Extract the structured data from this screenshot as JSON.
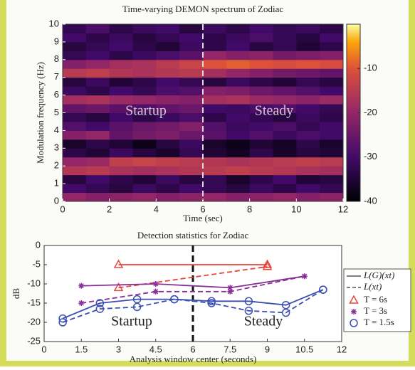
{
  "chart_data": [
    {
      "type": "heatmap",
      "title": "Time-varying DEMON spectrum of Zodiac",
      "x_label": "Time (sec)",
      "y_label": "Modulation frequency (Hz)",
      "x": [
        0.5,
        1.5,
        2.5,
        3.5,
        4.5,
        5.5,
        6.5,
        7.5,
        8.5,
        9.5,
        10.5,
        11.5
      ],
      "y": [
        0.25,
        0.75,
        1.25,
        1.75,
        2.25,
        2.75,
        3.25,
        3.75,
        4.25,
        4.75,
        5.25,
        5.75,
        6.25,
        6.75,
        7.25,
        7.75,
        8.25,
        8.75,
        9.25,
        9.75
      ],
      "values": [
        [
          -20,
          -22,
          -21,
          -20,
          -22,
          -21,
          -20,
          -22,
          -21,
          -20,
          -22,
          -21
        ],
        [
          -30,
          -32,
          -34,
          -31,
          -33,
          -30,
          -32,
          -34,
          -31,
          -33,
          -30,
          -32
        ],
        [
          -34,
          -30,
          -33,
          -35,
          -31,
          -34,
          -32,
          -36,
          -33,
          -30,
          -35,
          -34
        ],
        [
          -16,
          -15,
          -17,
          -18,
          -17,
          -16,
          -15,
          -14,
          -15,
          -16,
          -17,
          -18
        ],
        [
          -20,
          -19,
          -14,
          -13,
          -14,
          -15,
          -16,
          -17,
          -16,
          -15,
          -14,
          -15
        ],
        [
          -33,
          -35,
          -31,
          -34,
          -36,
          -32,
          -35,
          -37,
          -33,
          -36,
          -34,
          -35
        ],
        [
          -36,
          -33,
          -35,
          -38,
          -34,
          -31,
          -36,
          -38,
          -35,
          -37,
          -33,
          -36
        ],
        [
          -22,
          -20,
          -26,
          -24,
          -23,
          -25,
          -27,
          -30,
          -28,
          -31,
          -29,
          -30
        ],
        [
          -28,
          -30,
          -27,
          -25,
          -24,
          -22,
          -28,
          -31,
          -30,
          -29,
          -32,
          -30
        ],
        [
          -32,
          -34,
          -30,
          -33,
          -31,
          -29,
          -33,
          -30,
          -32,
          -34,
          -31,
          -33
        ],
        [
          -26,
          -25,
          -27,
          -28,
          -26,
          -25,
          -30,
          -31,
          -29,
          -28,
          -30,
          -32
        ],
        [
          -18,
          -17,
          -19,
          -20,
          -21,
          -22,
          -18,
          -17,
          -19,
          -20,
          -21,
          -19
        ],
        [
          -31,
          -33,
          -30,
          -32,
          -29,
          -28,
          -22,
          -23,
          -25,
          -26,
          -28,
          -30
        ],
        [
          -34,
          -31,
          -35,
          -33,
          -30,
          -32,
          -34,
          -31,
          -33,
          -35,
          -32,
          -34
        ],
        [
          -15,
          -14,
          -16,
          -17,
          -16,
          -15,
          -18,
          -20,
          -22,
          -24,
          -25,
          -26
        ],
        [
          -22,
          -20,
          -18,
          -17,
          -15,
          -13,
          -10,
          -9,
          -10,
          -11,
          -10,
          -11
        ],
        [
          -32,
          -30,
          -33,
          -31,
          -29,
          -27,
          -20,
          -22,
          -21,
          -24,
          -23,
          -22
        ],
        [
          -34,
          -32,
          -30,
          -33,
          -35,
          -31,
          -33,
          -30,
          -34,
          -32,
          -35,
          -33
        ],
        [
          -30,
          -33,
          -31,
          -34,
          -32,
          -30,
          -33,
          -31,
          -29,
          -32,
          -34,
          -30
        ],
        [
          -32,
          -29,
          -33,
          -31,
          -30,
          -34,
          -31,
          -33,
          -30,
          -32,
          -31,
          -33
        ]
      ],
      "xlim": [
        0,
        12
      ],
      "ylim": [
        0,
        10
      ],
      "xticks": [
        0,
        2,
        4,
        6,
        8,
        10,
        12
      ],
      "yticks": [
        0,
        1,
        2,
        3,
        4,
        5,
        6,
        7,
        8,
        9,
        10
      ],
      "colormap": "inferno",
      "clim": [
        -40,
        0
      ],
      "cticks": [
        -10,
        -20,
        -30,
        -40
      ],
      "vline": 6,
      "annotations": [
        "Startup",
        "Steady"
      ]
    },
    {
      "type": "line",
      "title": "Detection statistics for Zodiac",
      "x_label": "Analysis window center (seconds)",
      "y_label": "dB",
      "xlim": [
        0,
        12
      ],
      "ylim": [
        -25,
        0
      ],
      "xticks": [
        0,
        1.5,
        3,
        4.5,
        6,
        7.5,
        9,
        10.5,
        12
      ],
      "yticks": [
        -25,
        -20,
        -15,
        -10,
        -5,
        0
      ],
      "vline": 6,
      "annotations": [
        "Startup",
        "Steady"
      ],
      "legend": {
        "styles": [
          {
            "label": "L(G)(xt)",
            "dashed": false
          },
          {
            "label": "L(xt)",
            "dashed": true
          }
        ],
        "windows": [
          {
            "label": "T = 6s",
            "color": "#e8453c",
            "marker": "triangle"
          },
          {
            "label": "T = 3s",
            "color": "#8a2f9a",
            "marker": "star"
          },
          {
            "label": "T = 1.5s",
            "color": "#3b4fb0",
            "marker": "circle"
          }
        ]
      },
      "series": [
        {
          "window": 0,
          "style": 0,
          "x": [
            3,
            9
          ],
          "values": [
            -5,
            -5
          ]
        },
        {
          "window": 0,
          "style": 1,
          "x": [
            3,
            9
          ],
          "values": [
            -11,
            -5.5
          ]
        },
        {
          "window": 1,
          "style": 0,
          "x": [
            1.5,
            4.5,
            7.5,
            10.5
          ],
          "values": [
            -10.5,
            -10,
            -11,
            -8
          ]
        },
        {
          "window": 1,
          "style": 1,
          "x": [
            1.5,
            4.5,
            7.5,
            10.5
          ],
          "values": [
            -15,
            -12,
            -12,
            -8
          ]
        },
        {
          "window": 2,
          "style": 0,
          "x": [
            0.75,
            2.25,
            3.75,
            5.25,
            6.75,
            8.25,
            9.75,
            11.25
          ],
          "values": [
            -19,
            -15,
            -14,
            -14,
            -14.5,
            -14.5,
            -15.5,
            -11.5
          ]
        },
        {
          "window": 2,
          "style": 1,
          "x": [
            0.75,
            2.25,
            3.75,
            5.25,
            6.75,
            8.25,
            9.75,
            11.25
          ],
          "values": [
            -20,
            -16.5,
            -16,
            -14,
            -15,
            -17,
            -17.5,
            -11.5
          ]
        }
      ]
    }
  ]
}
